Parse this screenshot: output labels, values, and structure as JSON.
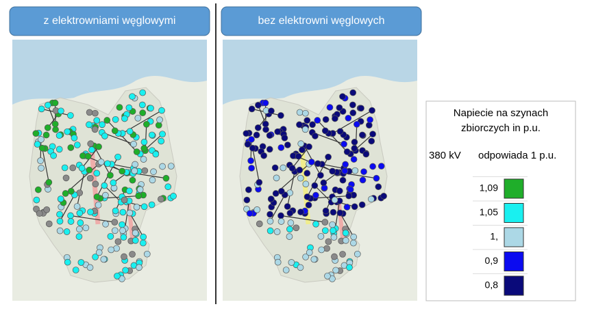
{
  "panels": [
    {
      "title": "z elektrowniami węglowymi"
    },
    {
      "title": "bez elektrowni węglowych"
    }
  ],
  "legend": {
    "title_lines": [
      "Napiecie na szynach",
      "zbiorczych in p.u."
    ],
    "voltage": "380 kV",
    "note": "odpowiada 1 p.u.",
    "items": [
      {
        "label": "1,09",
        "color": "#1fae2a"
      },
      {
        "label": "1,05",
        "color": "#19f0f0"
      },
      {
        "label": "1,",
        "color": "#acd8e6"
      },
      {
        "label": "0,9",
        "color": "#0b0bf0"
      },
      {
        "label": "0,8",
        "color": "#0a0a7a"
      }
    ]
  }
}
